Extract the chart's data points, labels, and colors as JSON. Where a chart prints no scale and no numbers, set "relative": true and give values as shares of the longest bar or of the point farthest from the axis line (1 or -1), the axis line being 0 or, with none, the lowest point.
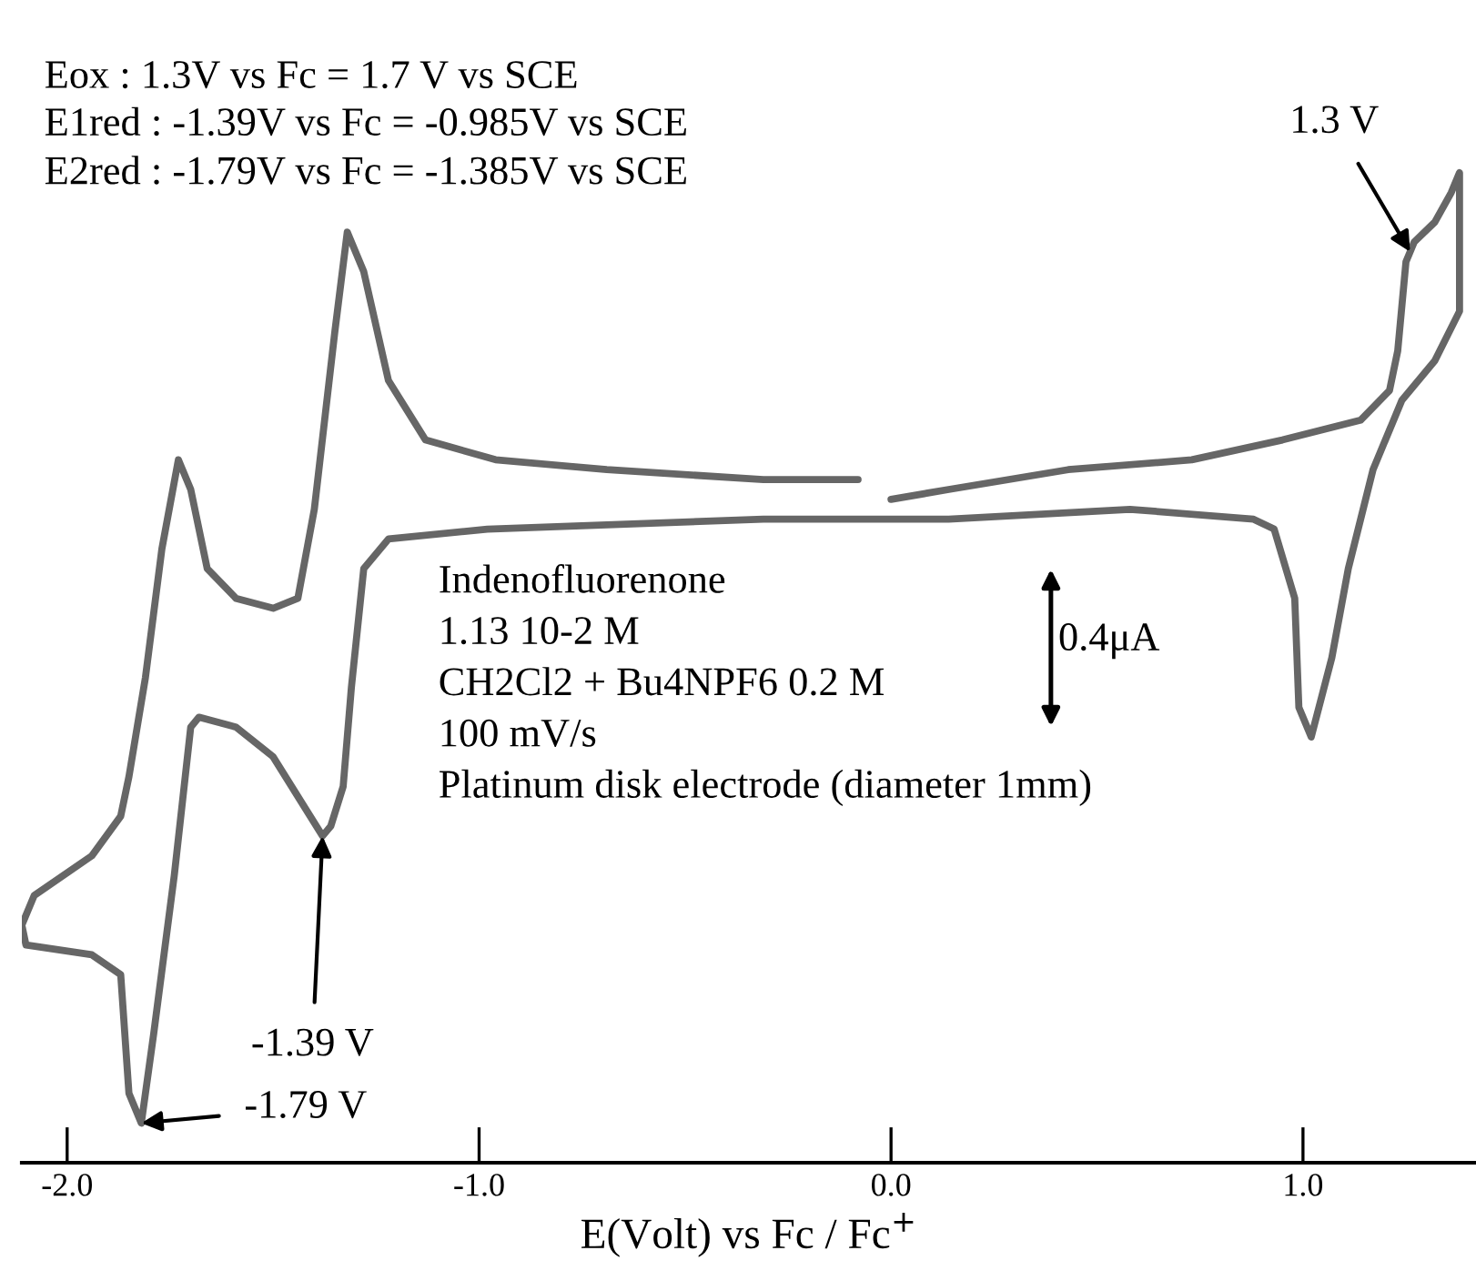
{
  "chart_data": {
    "type": "line",
    "relative": true,
    "xlabel": "E(Volt) vs Fc / Fc$^{+}$",
    "xlim": [
      -2.11,
      1.42
    ],
    "xticks": [
      {
        "value": -2.0,
        "label": "-2.0"
      },
      {
        "value": -1.0,
        "label": "-1.0"
      },
      {
        "value": 0.0,
        "label": "0.0"
      },
      {
        "value": 1.0,
        "label": "1.0"
      }
    ],
    "grid": false,
    "marker": "none",
    "line_style": "solid",
    "tick_labels": "x",
    "series": [
      {
        "color": "#666666",
        "x": [
          0.0,
          0.14,
          0.43,
          0.73,
          0.95,
          1.14,
          1.21,
          1.23,
          1.25,
          1.27,
          1.32,
          1.36,
          1.38,
          1.38,
          1.38,
          1.32,
          1.24,
          1.17,
          1.11,
          1.07,
          1.02,
          0.99,
          0.98,
          0.93,
          0.88,
          0.58,
          0.14,
          -0.31,
          -0.98,
          -1.22,
          -1.28,
          -1.31,
          -1.33,
          -1.36,
          -1.38,
          -1.41,
          -1.5,
          -1.59,
          -1.68,
          -1.7,
          -1.74,
          -1.79,
          -1.82,
          -1.85,
          -1.87,
          -1.94,
          -2.1,
          -2.11,
          -2.08,
          -1.94,
          -1.87,
          -1.85,
          -1.81,
          -1.77,
          -1.73,
          -1.7,
          -1.66,
          -1.59,
          -1.5,
          -1.44,
          -1.4,
          -1.35,
          -1.32,
          -1.28,
          -1.22,
          -1.13,
          -0.96,
          -0.69,
          -0.31,
          -0.08
        ],
        "values": [
          0.67,
          0.68,
          0.7,
          0.71,
          0.73,
          0.75,
          0.78,
          0.82,
          0.91,
          0.93,
          0.95,
          0.98,
          1.0,
          0.92,
          0.86,
          0.81,
          0.77,
          0.7,
          0.6,
          0.51,
          0.43,
          0.46,
          0.57,
          0.64,
          0.65,
          0.66,
          0.65,
          0.65,
          0.64,
          0.63,
          0.6,
          0.48,
          0.38,
          0.34,
          0.33,
          0.35,
          0.41,
          0.44,
          0.45,
          0.44,
          0.29,
          0.13,
          0.04,
          0.07,
          0.19,
          0.21,
          0.22,
          0.24,
          0.27,
          0.31,
          0.35,
          0.39,
          0.49,
          0.62,
          0.71,
          0.68,
          0.6,
          0.57,
          0.56,
          0.57,
          0.66,
          0.84,
          0.94,
          0.9,
          0.79,
          0.73,
          0.71,
          0.7,
          0.69,
          0.69
        ]
      }
    ],
    "annotations": [
      "Eox : 1.3V vs Fc = 1.7 V vs SCE",
      "E1red : -1.39V vs Fc = -0.985V vs SCE",
      "E2red : -1.79V vs Fc = -1.385V vs SCE",
      "Indenofluorenone",
      "1.13 10-2 M",
      "CH2Cl2 + Bu4NPF6 0.2 M",
      "100 mV/s",
      "Platinum disk electrode (diameter 1mm)",
      "0.4μA",
      {
        "text": "1.3 V",
        "x": 1.26,
        "y": 0.92
      },
      {
        "text": "-1.39 V",
        "x": -1.38,
        "y": 0.33
      },
      {
        "text": "-1.79 V",
        "x": -1.82,
        "y": 0.04
      }
    ]
  }
}
